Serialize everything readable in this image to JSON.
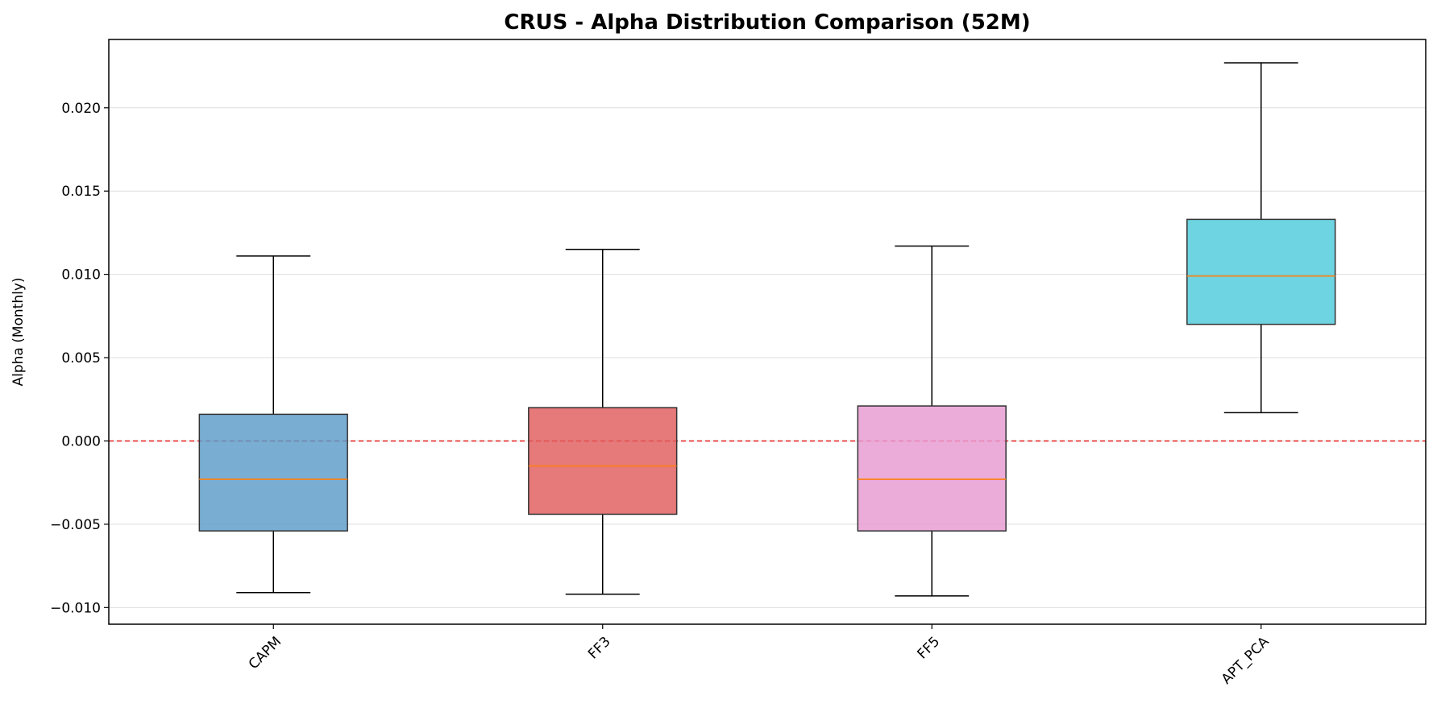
{
  "chart_data": {
    "type": "boxplot",
    "title": "CRUS - Alpha Distribution Comparison (52M)",
    "xlabel": "",
    "ylabel": "Alpha (Monthly)",
    "ylim": [
      -0.011,
      0.0241
    ],
    "yticks": [
      -0.01,
      -0.005,
      0.0,
      0.005,
      0.01,
      0.015,
      0.02
    ],
    "ytick_labels": [
      "−0.010",
      "−0.005",
      "0.000",
      "0.005",
      "0.010",
      "0.015",
      "0.020"
    ],
    "grid": "y",
    "reference_line": {
      "y": 0.0,
      "style": "dashed",
      "color": "#e41a1c"
    },
    "categories": [
      "CAPM",
      "FF3",
      "FF5",
      "APT_PCA"
    ],
    "boxes": [
      {
        "name": "CAPM",
        "whisker_low": -0.0091,
        "q1": -0.0054,
        "median": -0.0023,
        "q3": 0.0016,
        "whisker_high": 0.0111,
        "color": "#5b9bc8"
      },
      {
        "name": "FF3",
        "whisker_low": -0.0092,
        "q1": -0.0044,
        "median": -0.0015,
        "q3": 0.002,
        "whisker_high": 0.0115,
        "color": "#e05c5c"
      },
      {
        "name": "FF5",
        "whisker_low": -0.0093,
        "q1": -0.0054,
        "median": -0.0023,
        "q3": 0.0021,
        "whisker_high": 0.0117,
        "color": "#e89ad2"
      },
      {
        "name": "APT_PCA",
        "whisker_low": 0.0017,
        "q1": 0.007,
        "median": 0.0099,
        "q3": 0.0133,
        "whisker_high": 0.0227,
        "color": "#4ecbdb"
      }
    ],
    "median_color": "#ff7f0e"
  }
}
